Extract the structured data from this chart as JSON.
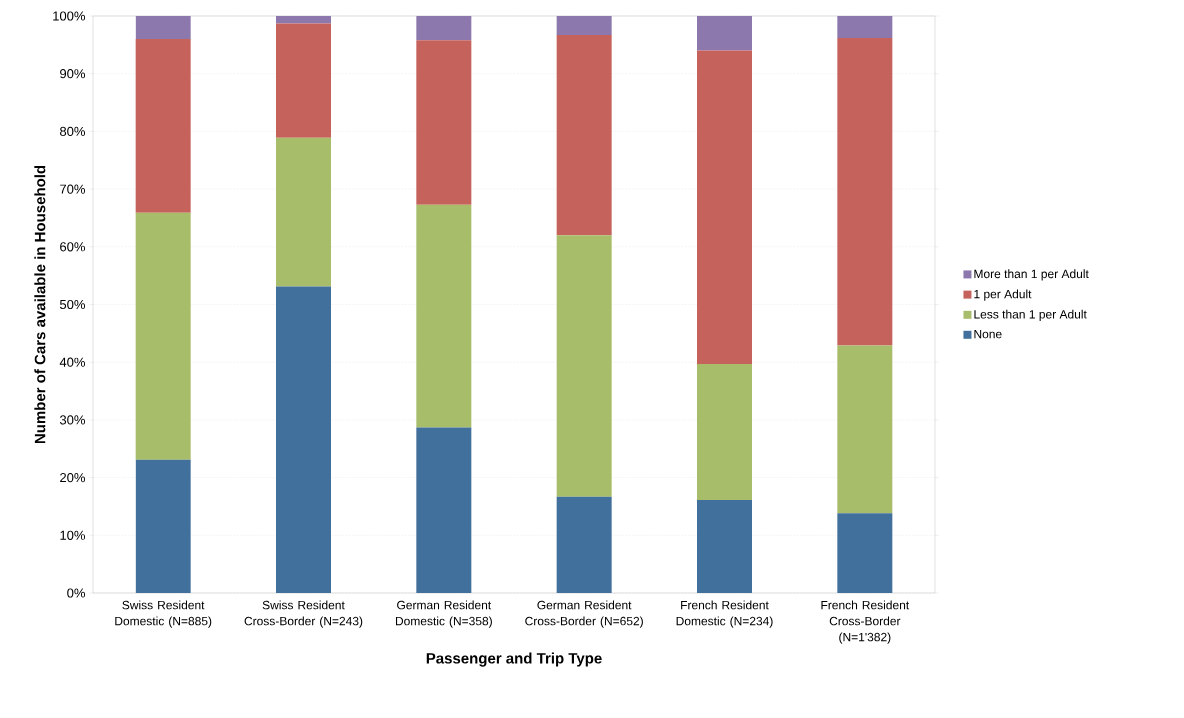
{
  "chart_data": {
    "type": "bar",
    "stacked": true,
    "xlabel": "Passenger and Trip Type",
    "ylabel": "Number of Cars available in Household",
    "categories": [
      "Swiss Resident Domestic (N=885)",
      "Swiss Resident Cross-Border (N=243)",
      "German Resident Domestic (N=358)",
      "German Resident Cross-Border (N=652)",
      "French Resident Domestic (N=234)",
      "French Resident Cross-Border (N=1'382)"
    ],
    "series": [
      {
        "name": "None",
        "color": "#41709d",
        "values": [
          23.1,
          53.1,
          28.7,
          16.7,
          16.1,
          13.8
        ]
      },
      {
        "name": "Less than 1 per Adult",
        "color": "#a8bd6a",
        "values": [
          42.8,
          25.8,
          38.6,
          45.3,
          23.6,
          29.1
        ]
      },
      {
        "name": "1 per Adult",
        "color": "#c6625c",
        "values": [
          30.1,
          19.8,
          28.5,
          34.7,
          54.3,
          53.3
        ]
      },
      {
        "name": "More than 1 per Adult",
        "color": "#8c78ad",
        "values": [
          4.0,
          1.3,
          4.2,
          3.3,
          6.0,
          3.8
        ]
      }
    ],
    "ylim": [
      0,
      100
    ],
    "yticks": [
      {
        "value": 0,
        "label": "0%"
      },
      {
        "value": 10,
        "label": "10%"
      },
      {
        "value": 20,
        "label": "20%"
      },
      {
        "value": 30,
        "label": "30%"
      },
      {
        "value": 40,
        "label": "40%"
      },
      {
        "value": 50,
        "label": "50%"
      },
      {
        "value": 60,
        "label": "60%"
      },
      {
        "value": 70,
        "label": "70%"
      },
      {
        "value": 80,
        "label": "80%"
      },
      {
        "value": 90,
        "label": "90%"
      },
      {
        "value": 100,
        "label": "100%"
      }
    ],
    "grid": "y",
    "legend": "right"
  }
}
